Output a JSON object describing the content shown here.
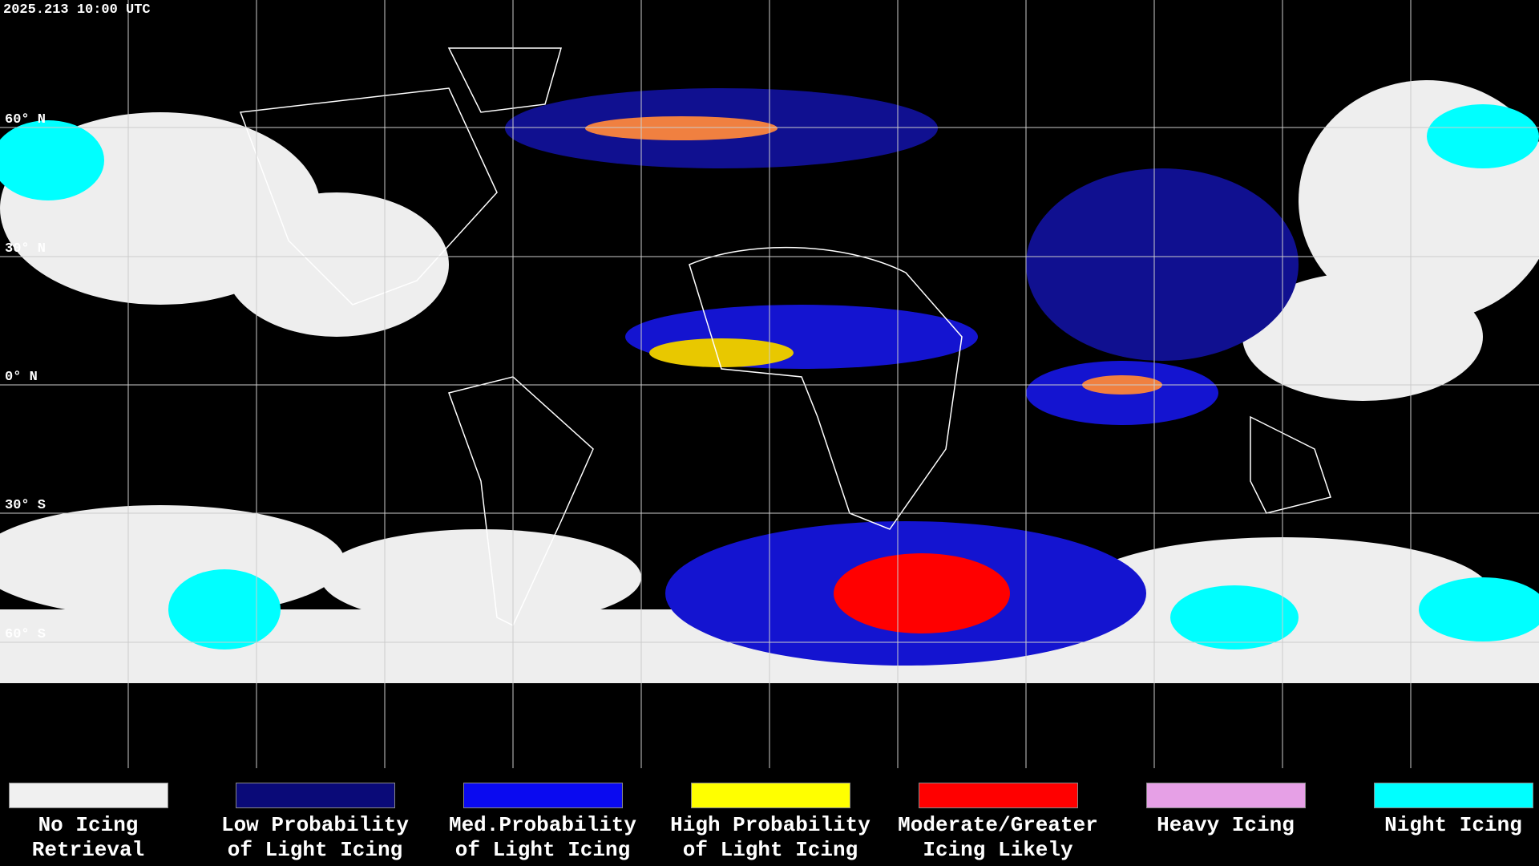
{
  "timestamp": "2025.213 10:00 UTC",
  "latitude_labels": [
    "60° N",
    "30° N",
    "0° N",
    "30° S",
    "60° S"
  ],
  "legend": {
    "items": [
      {
        "lines": [
          "No Icing",
          "Retrieval"
        ],
        "color": "#f0f0f0"
      },
      {
        "lines": [
          "Low Probability",
          "of Light Icing"
        ],
        "color": "#0a0a78"
      },
      {
        "lines": [
          "Med.Probability",
          "of Light Icing"
        ],
        "color": "#0a0af0"
      },
      {
        "lines": [
          "High Probability",
          "of Light Icing"
        ],
        "color": "#ffff00"
      },
      {
        "lines": [
          "Moderate/Greater",
          "Icing Likely"
        ],
        "color": "#ff0000"
      },
      {
        "lines": [
          "Heavy Icing"
        ],
        "color": "#e6a0e6"
      },
      {
        "lines": [
          "Night Icing"
        ],
        "color": "#00ffff"
      }
    ]
  }
}
